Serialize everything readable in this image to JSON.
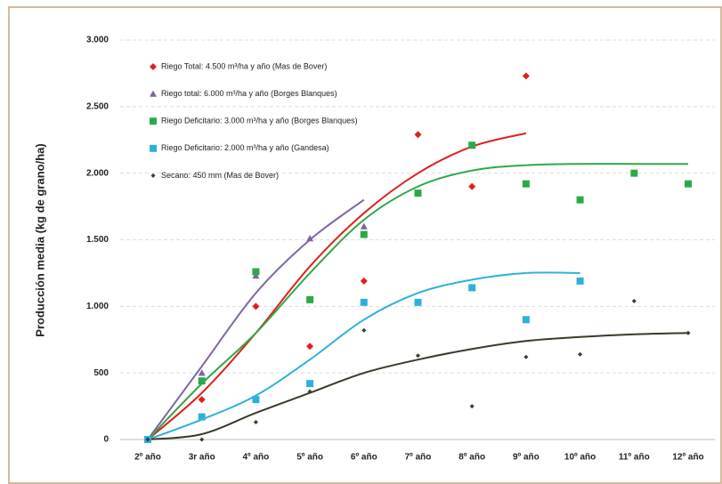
{
  "chart_data": {
    "type": "scatter",
    "y_label": "Producción media (kg de grano/ha)",
    "categories": [
      "2º año",
      "3r año",
      "4º año",
      "5º año",
      "6º año",
      "7º año",
      "8º año",
      "9º año",
      "10º año",
      "11º año",
      "12º año"
    ],
    "ylim": [
      0,
      3000
    ],
    "yticks": [
      0,
      500,
      {
        "value": 1000,
        "label": "1.000"
      },
      {
        "value": 1500,
        "label": "1.500"
      },
      {
        "value": 2000,
        "label": "2.000"
      },
      {
        "value": 2500,
        "label": "2.500"
      },
      {
        "value": 3000,
        "label": "3.000"
      }
    ],
    "grid": true,
    "legend": "top-left",
    "series": [
      {
        "name": "Riego Total: 4.500 m³/ha y año (Mas de Bover)",
        "color": "#e0201b",
        "marker": "diamond",
        "values": [
          0,
          300,
          1000,
          700,
          1190,
          2290,
          1900,
          2730,
          null,
          null,
          null
        ],
        "trend": [
          0,
          350,
          800,
          1300,
          1700,
          2000,
          2200,
          2300,
          null,
          null,
          null
        ]
      },
      {
        "name": "Riego total: 6.000 m³/ha y año (Borges Blanques)",
        "color": "#8064a2",
        "marker": "triangle",
        "values": [
          0,
          500,
          1230,
          1510,
          1600,
          null,
          null,
          null,
          null,
          null,
          null
        ],
        "trend": [
          0,
          550,
          1100,
          1500,
          1800,
          null,
          null,
          null,
          null,
          null,
          null
        ]
      },
      {
        "name": "Riego Deficitario: 3.000 m³/ha y año (Borges Blanques)",
        "color": "#2ea84a",
        "marker": "square",
        "values": [
          0,
          440,
          1260,
          1050,
          1540,
          1850,
          2210,
          1920,
          1800,
          2000,
          1920
        ],
        "trend": [
          0,
          420,
          800,
          1250,
          1650,
          1900,
          2020,
          2060,
          2070,
          2070,
          2070
        ]
      },
      {
        "name": "Riego Deficitario: 2.000 m³/ha y año (Gandesa)",
        "color": "#2fb0d8",
        "marker": "square",
        "values": [
          0,
          170,
          300,
          420,
          1030,
          1030,
          1140,
          900,
          1190,
          null,
          null
        ],
        "trend": [
          0,
          150,
          330,
          600,
          900,
          1100,
          1200,
          1250,
          1250,
          null,
          null
        ]
      },
      {
        "name": "Secano: 450 mm (Mas de Bover)",
        "color": "#3a3a2a",
        "marker": "dot",
        "values": [
          0,
          0,
          130,
          360,
          820,
          630,
          250,
          620,
          640,
          1040,
          800
        ],
        "trend": [
          0,
          40,
          200,
          350,
          500,
          600,
          680,
          740,
          770,
          790,
          800
        ]
      }
    ]
  }
}
